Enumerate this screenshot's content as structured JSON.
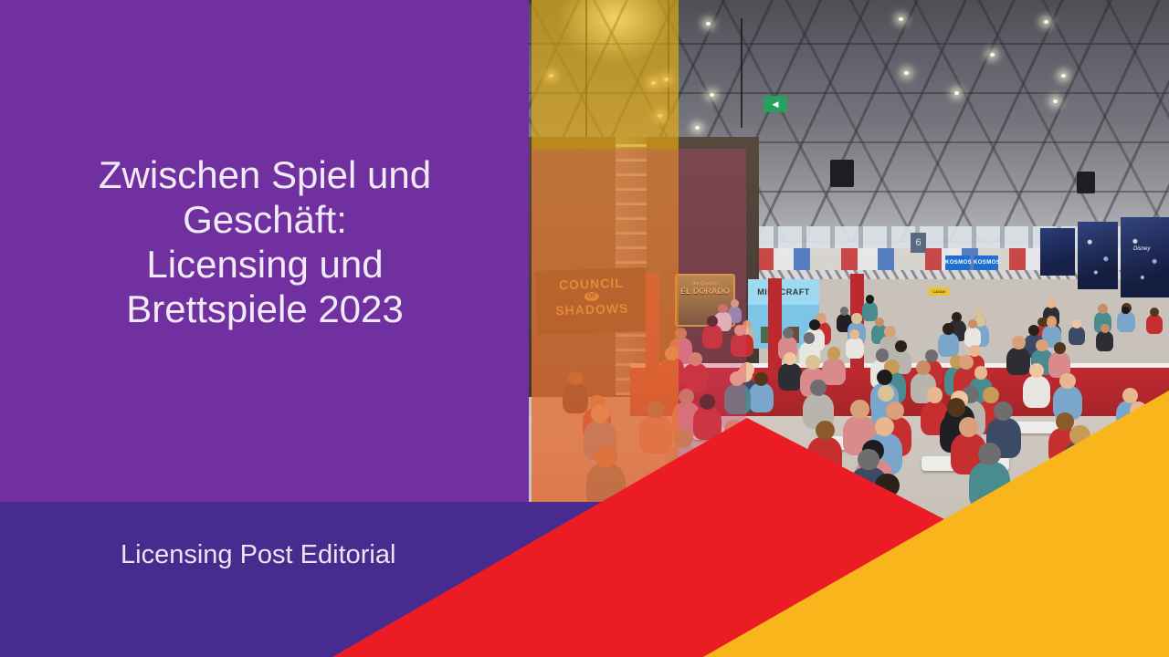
{
  "slide": {
    "title_lines": [
      "Zwischen Spiel und",
      "Geschäft:",
      "Licensing und",
      "Brettspiele 2023"
    ],
    "footer": "Licensing Post Editorial"
  },
  "colors": {
    "purple_main": "#7030a0",
    "purple_band": "#472b8e",
    "red_triangle": "#ec1c24",
    "yellow_triangle": "#f9b51c",
    "overlay_yellow": "#f3ac06",
    "overlay_pink": "#d53e6c",
    "text": "#f2ebf7"
  },
  "photo_signs": {
    "council_line1": "COUNCIL",
    "council_of": "OF",
    "council_line2": "SHADOWS",
    "eldorado_quest": "The Quest for",
    "eldorado_name": "EL DORADO",
    "minecraft": "MINECRAFT",
    "kosmos_left": "KOSMOS",
    "kosmos_right": "KOSMOS",
    "catan": "CATAN",
    "pillar_number": "6",
    "disney": "Disney",
    "exit_arrow": "◀"
  }
}
